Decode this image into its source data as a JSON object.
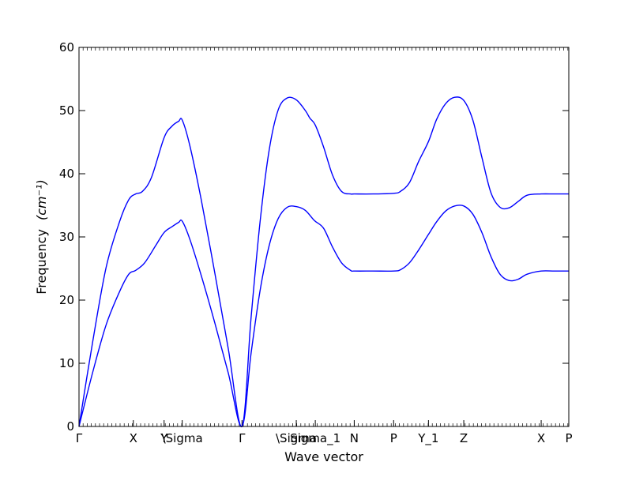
{
  "chart_data": {
    "type": "line",
    "title": "",
    "xlabel": "Wave vector",
    "ylabel_text": "Frequency",
    "ylabel_unit_math": "(cm⁻¹)",
    "ylim": [
      0,
      60
    ],
    "yticks": [
      0,
      10,
      20,
      30,
      40,
      50,
      60
    ],
    "xlim": [
      0,
      10.82
    ],
    "xticks": [
      {
        "label": "Γ",
        "value": 0
      },
      {
        "label": "X",
        "value": 1.2
      },
      {
        "label": "Y",
        "value": 1.88
      },
      {
        "label": "\\Sigma",
        "value": 2.28
      },
      {
        "label": "Γ",
        "value": 3.6
      },
      {
        "label": "\\Sigma",
        "value": 4.8
      },
      {
        "label": "Sigma_1",
        "value": 5.22
      },
      {
        "label": "N",
        "value": 6.08
      },
      {
        "label": "P",
        "value": 6.95
      },
      {
        "label": "Y_1",
        "value": 7.72
      },
      {
        "label": "Z",
        "value": 8.5
      },
      {
        "label": "X",
        "value": 10.21
      },
      {
        "label": "P",
        "value": 10.82
      }
    ],
    "grid": false,
    "legend": "none",
    "line_color": "#0000ff",
    "series": [
      {
        "x": [
          0,
          0.3,
          0.6,
          0.9,
          1.1,
          1.25,
          1.45,
          1.7,
          1.88,
          2.05,
          2.2,
          2.28,
          2.45,
          2.7,
          3.0,
          3.3,
          3.6,
          3.8,
          4.0,
          4.2,
          4.4,
          4.6,
          4.8,
          5.0,
          5.2,
          5.4,
          5.6,
          5.8,
          6.0,
          6.08,
          6.5,
          6.95,
          7.1,
          7.3,
          7.5,
          7.72,
          7.9,
          8.1,
          8.3,
          8.5,
          8.7,
          8.9,
          9.1,
          9.3,
          9.5,
          9.7,
          9.9,
          10.21,
          10.5,
          10.82
        ],
        "y": [
          0,
          8.5,
          16.1,
          21.4,
          24.1,
          24.7,
          25.9,
          28.7,
          30.7,
          31.6,
          32.3,
          32.5,
          29.6,
          23.9,
          16.4,
          8.4,
          0,
          11.5,
          21.5,
          28.6,
          32.9,
          34.7,
          34.8,
          34.2,
          32.6,
          31.4,
          28.4,
          25.9,
          24.7,
          24.6,
          24.6,
          24.6,
          24.8,
          25.9,
          27.9,
          30.4,
          32.4,
          34.1,
          34.9,
          34.9,
          33.6,
          30.7,
          26.9,
          24.1,
          23.1,
          23.3,
          24.1,
          24.6,
          24.6,
          24.6
        ]
      },
      {
        "x": [
          0,
          0.3,
          0.6,
          0.9,
          1.1,
          1.25,
          1.4,
          1.6,
          1.88,
          2.05,
          2.2,
          2.28,
          2.45,
          2.7,
          3.0,
          3.3,
          3.6,
          3.8,
          4.0,
          4.2,
          4.4,
          4.6,
          4.8,
          5.0,
          5.1,
          5.22,
          5.4,
          5.6,
          5.8,
          6.0,
          6.08,
          6.5,
          6.95,
          7.1,
          7.3,
          7.5,
          7.72,
          7.9,
          8.1,
          8.3,
          8.5,
          8.7,
          8.9,
          9.1,
          9.3,
          9.5,
          9.7,
          9.9,
          10.21,
          10.5,
          10.82
        ],
        "y": [
          0,
          13.3,
          25.2,
          32.5,
          35.9,
          36.8,
          37.2,
          39.4,
          45.7,
          47.5,
          48.3,
          48.5,
          44.4,
          35.9,
          24.3,
          12.2,
          0,
          17.1,
          32.4,
          43.7,
          50.1,
          52.0,
          51.7,
          50.0,
          48.8,
          47.7,
          44.3,
          39.8,
          37.2,
          36.8,
          36.8,
          36.8,
          36.9,
          37.2,
          38.6,
          41.9,
          45.1,
          48.6,
          51.1,
          52.1,
          51.6,
          48.5,
          42.6,
          37.0,
          34.7,
          34.6,
          35.6,
          36.6,
          36.8,
          36.8,
          36.8
        ]
      }
    ]
  }
}
